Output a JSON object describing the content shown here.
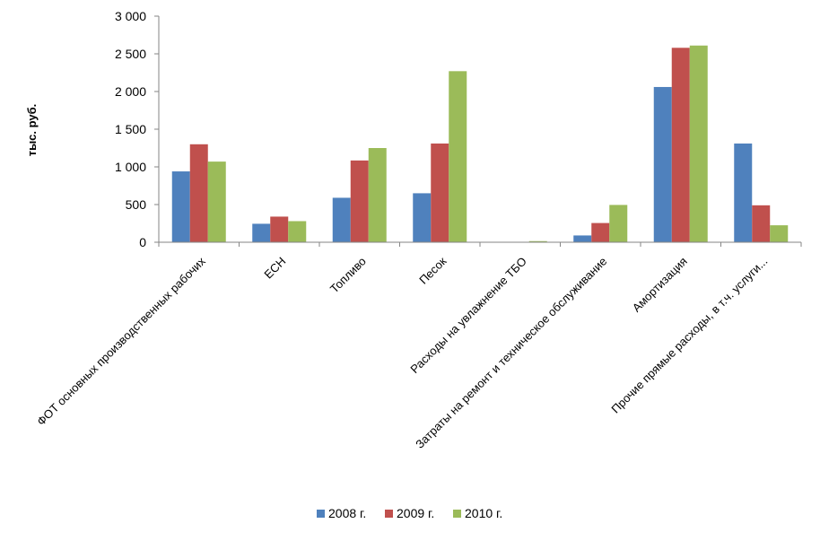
{
  "chart_data": {
    "type": "bar",
    "categories": [
      "ФОТ основных производственных рабочих",
      "ЕСН",
      "Топливо",
      "Песок",
      "Расходы на увлажнение ТБО",
      "Затраты на ремонт и техническое обслуживание",
      "Амортизация",
      "Прочие прямые расходы, в т.ч. услуги..."
    ],
    "series": [
      {
        "name": "2008 г.",
        "color": "#4F81BD",
        "values": [
          940,
          245,
          590,
          650,
          0,
          90,
          2060,
          1310
        ]
      },
      {
        "name": "2009 г.",
        "color": "#C0504D",
        "values": [
          1300,
          340,
          1085,
          1310,
          0,
          255,
          2580,
          490
        ]
      },
      {
        "name": "2010 г.",
        "color": "#9BBB59",
        "values": [
          1070,
          280,
          1250,
          2270,
          15,
          495,
          2610,
          225
        ]
      }
    ],
    "ylabel": "тыс. руб.",
    "ylim": [
      0,
      3000
    ],
    "yticks": [
      0,
      500,
      1000,
      1500,
      2000,
      2500,
      3000
    ],
    "ytick_labels": [
      "0",
      "500",
      "1 000",
      "1 500",
      "2 000",
      "2 500",
      "3 000"
    ],
    "grid": false,
    "legend_position": "bottom"
  }
}
